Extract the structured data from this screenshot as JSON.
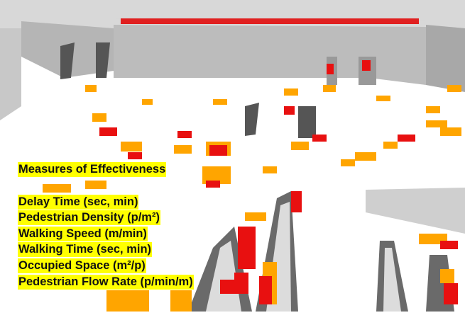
{
  "overlay": {
    "title": "Measures of Effectiveness",
    "items": [
      "Delay Time (sec, min)",
      "Pedestrian Density (p/m²)",
      "Walking Speed (m/min)",
      "Walking Time (sec, min)",
      "Occupied Space (m²/p)",
      "Pedestrian Flow Rate (p/min/m)"
    ]
  },
  "colors": {
    "highlight": "#ffff00",
    "tile_orange": "#ffa500",
    "tile_red": "#e81010",
    "wall": "#b8b8b8",
    "floor": "#ffffff"
  }
}
